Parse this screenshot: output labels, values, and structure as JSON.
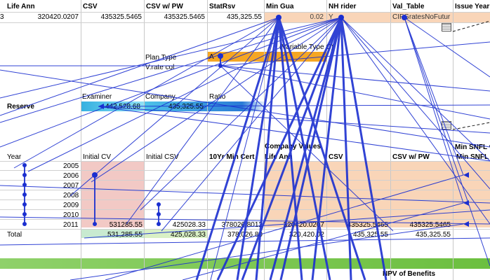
{
  "top_headers": [
    "Life Ann",
    "CSV",
    "CSV w/ PW",
    "StatRsv",
    "Min Gua",
    "NH rider",
    "Val_Table",
    "Issue Year"
  ],
  "row1": {
    "lead": "3",
    "life_ann": "320420.0207",
    "csv": "435325.5465",
    "csv_pw": "435325.5465",
    "statrsv": "435,325.55",
    "min_gua": "0.02",
    "nh_rider": "Y",
    "val_table": "CIFGratesNoFutur"
  },
  "plan": {
    "plan_type_label": "Plan Type",
    "plan_type_value": "A",
    "vrate_label": "V.rate col",
    "note": "(Variable Type C)"
  },
  "reserve": {
    "label": "Reserve",
    "examiner_label": "Examiner",
    "company_label": "Company",
    "ratio_label": "Ratio",
    "examiner_value": "442,528.68",
    "company_value": "435,325.55"
  },
  "table": {
    "company_label": "Company Values",
    "headers": [
      "Year",
      "Initial CV",
      "Initial CSV",
      "10Yr Min Cert",
      "Life Ann",
      "CSV",
      "CSV w/ PW",
      "Min SNFL v"
    ],
    "min_snfl": "Min SNFL",
    "years": [
      "2005",
      "2006",
      "2007",
      "2008",
      "2009",
      "2010",
      "2011"
    ],
    "last_row": {
      "initial_cv": "531285.55",
      "initial_csv": "425028.33",
      "min_cert": "378026.8012",
      "life_ann": "320420.0207",
      "csv": "435325.5465",
      "csv_pw": "435325.5465"
    },
    "total": {
      "label": "Total",
      "initial_cv": "531,285.55",
      "initial_csv": "425,028.33",
      "min_cert": "378,026.80",
      "life_ann": "320,420.02",
      "csv": "435,325.55",
      "csv_pw": "435,325.55"
    }
  },
  "footer": {
    "npv_label": "NPV of Benefits"
  },
  "colors": {
    "peach": "#f9d5b8",
    "pink": "#f2c9c5",
    "orange": "#f5a623",
    "arrow": "#1b2fd0",
    "green": "#7fc24a",
    "cyan": "#4fc3e8"
  }
}
